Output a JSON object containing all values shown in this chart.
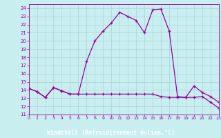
{
  "xlabel": "Windchill (Refroidissement éolien,°C)",
  "background_color": "#c8eef0",
  "grid_color": "#b0d8dc",
  "line_color": "#990099",
  "hours": [
    0,
    1,
    2,
    3,
    4,
    5,
    6,
    7,
    8,
    9,
    10,
    11,
    12,
    13,
    14,
    15,
    16,
    17,
    18,
    19,
    20,
    21,
    22,
    23
  ],
  "temp": [
    14.2,
    13.8,
    13.1,
    14.3,
    13.9,
    13.5,
    13.5,
    17.5,
    20.0,
    21.2,
    22.2,
    23.5,
    23.0,
    22.5,
    21.0,
    23.8,
    23.9,
    21.2,
    13.2,
    13.1,
    14.5,
    13.7,
    13.2,
    12.5
  ],
  "windchill": [
    14.2,
    13.8,
    13.1,
    14.3,
    13.9,
    13.5,
    13.5,
    13.5,
    13.5,
    13.5,
    13.5,
    13.5,
    13.5,
    13.5,
    13.5,
    13.5,
    13.2,
    13.1,
    13.1,
    13.1,
    13.1,
    13.2,
    12.5,
    11.8
  ],
  "ylim": [
    11,
    24.5
  ],
  "xlim": [
    0,
    23
  ],
  "yticks": [
    11,
    12,
    13,
    14,
    15,
    16,
    17,
    18,
    19,
    20,
    21,
    22,
    23,
    24
  ],
  "xticks": [
    0,
    1,
    2,
    3,
    4,
    5,
    6,
    7,
    8,
    9,
    10,
    11,
    12,
    13,
    14,
    15,
    16,
    17,
    18,
    19,
    20,
    21,
    22,
    23
  ]
}
